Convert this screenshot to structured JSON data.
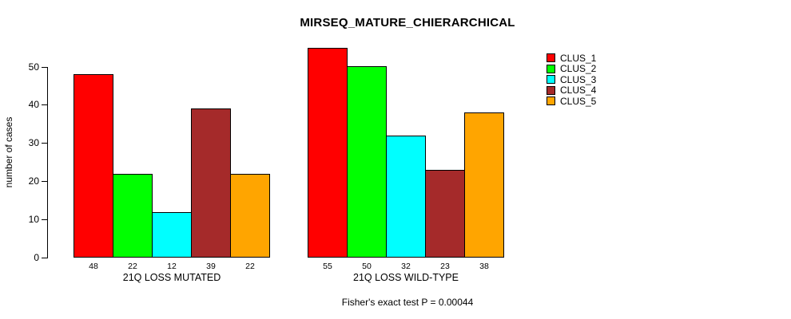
{
  "chart_data": {
    "type": "bar",
    "title": "MIRSEQ_MATURE_CHIERARCHICAL",
    "ylabel": "number of cases",
    "xlabel": "",
    "ylim": [
      0,
      55
    ],
    "yticks": [
      0,
      10,
      20,
      30,
      40,
      50
    ],
    "grid": false,
    "legend_position": "right",
    "series": [
      {
        "name": "CLUS_1",
        "color": "#FF0000"
      },
      {
        "name": "CLUS_2",
        "color": "#00FF00"
      },
      {
        "name": "CLUS_3",
        "color": "#00FFFF"
      },
      {
        "name": "CLUS_4",
        "color": "#A52A2A"
      },
      {
        "name": "CLUS_5",
        "color": "#FFA500"
      }
    ],
    "groups": [
      {
        "label": "21Q LOSS MUTATED",
        "values": [
          48,
          22,
          12,
          39,
          22
        ]
      },
      {
        "label": "21Q LOSS WILD-TYPE",
        "values": [
          55,
          50,
          32,
          23,
          38
        ]
      }
    ],
    "annotation": "Fisher's exact test P = 0.00044"
  }
}
